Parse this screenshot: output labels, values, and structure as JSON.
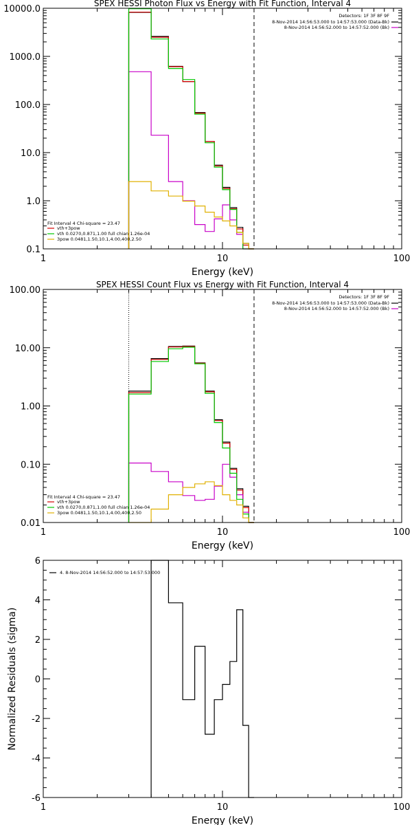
{
  "chart_data": [
    {
      "type": "line",
      "step": true,
      "title": "SPEX HESSI Photon Flux vs Energy with Fit Function, Interval 4",
      "xlabel": "Energy (keV)",
      "ylabel": "",
      "xscale": "log",
      "yscale": "log",
      "xlim": [
        1,
        100
      ],
      "ylim": [
        0.1,
        10000
      ],
      "xticks": [
        1,
        10,
        100
      ],
      "xtick_labels": [
        "1",
        "10",
        "100"
      ],
      "yticks": [
        0.1,
        1,
        10,
        100,
        1000,
        10000
      ],
      "ytick_labels": [
        "0.1",
        "1.0",
        "10.0",
        "100.0",
        "1000.0",
        "10000.0"
      ],
      "vlines": [
        {
          "x": 3.0,
          "style": "dotted",
          "color": "#e08a00"
        },
        {
          "x": 15.0,
          "style": "dashed",
          "color": "#000000"
        }
      ],
      "energy_edges": [
        3,
        4,
        5,
        6,
        7,
        8,
        9,
        10,
        11,
        12,
        13,
        14,
        15
      ],
      "series": [
        {
          "color": "#000000",
          "values": [
            8200,
            2600,
            620,
            300,
            68,
            17,
            5.5,
            1.9,
            0.72,
            0.28,
            0.13,
            0.1
          ]
        },
        {
          "color": "#d40000",
          "values": [
            8300,
            2500,
            610,
            300,
            66,
            17,
            5.3,
            1.8,
            0.68,
            0.26,
            0.12,
            0.1
          ]
        },
        {
          "color": "#c800c8",
          "values": [
            480,
            23,
            2.5,
            1.0,
            0.32,
            0.23,
            0.42,
            0.82,
            0.4,
            0.2,
            0.1,
            0.1
          ]
        },
        {
          "color": "#00c800",
          "values": [
            9800,
            2300,
            560,
            330,
            63,
            16,
            5.0,
            1.7,
            0.66,
            0.22,
            0.1,
            0.1
          ]
        },
        {
          "color": "#e0b000",
          "values": [
            2.5,
            1.6,
            1.25,
            0.98,
            0.78,
            0.58,
            0.46,
            0.38,
            0.3,
            0.22,
            0.13,
            0.1
          ]
        }
      ],
      "legend_right": {
        "header": "Detectors: 1F 3F 8F 9F",
        "items": [
          {
            "text": "8-Nov-2014 14:56:53.000 to 14:57:53.000 (Data-Bk)",
            "color": "#000000"
          },
          {
            "text": "8-Nov-2014 14:56:52.000 to 14:57:52.000 (Bk)",
            "color": "#c800c8"
          }
        ]
      },
      "legend_left": {
        "header": "Fit Interval  4   Chi-square = 23.47",
        "items": [
          {
            "text": "vth+3pow",
            "color": "#d40000"
          },
          {
            "text": "vth 0.0270,0.871,1.00  full chian 1.26e-04",
            "color": "#00c800"
          },
          {
            "text": "3pow 0.0481,1.50,10.1,4.00,400,2.50",
            "color": "#e0b000"
          }
        ]
      }
    },
    {
      "type": "line",
      "step": true,
      "title": "SPEX HESSI Count Flux vs Energy with Fit Function, Interval 4",
      "xlabel": "Energy (keV)",
      "ylabel": "",
      "xscale": "log",
      "yscale": "log",
      "xlim": [
        1,
        100
      ],
      "ylim": [
        0.01,
        100
      ],
      "xticks": [
        1,
        10,
        100
      ],
      "xtick_labels": [
        "1",
        "10",
        "100"
      ],
      "yticks": [
        0.01,
        0.1,
        1,
        10,
        100
      ],
      "ytick_labels": [
        "0.01",
        "0.10",
        "1.00",
        "10.00",
        "100.00"
      ],
      "vlines": [
        {
          "x": 3.0,
          "style": "dotted",
          "color": "#000000"
        },
        {
          "x": 15.0,
          "style": "dashed",
          "color": "#000000"
        }
      ],
      "energy_edges": [
        3,
        4,
        5,
        6,
        7,
        8,
        9,
        10,
        11,
        12,
        13,
        14,
        15
      ],
      "series": [
        {
          "color": "#000000",
          "values": [
            1.8,
            6.5,
            10.5,
            10.7,
            5.5,
            1.8,
            0.58,
            0.24,
            0.085,
            0.038,
            0.019,
            0.01
          ]
        },
        {
          "color": "#d40000",
          "values": [
            1.7,
            6.3,
            10.3,
            10.5,
            5.4,
            1.75,
            0.56,
            0.23,
            0.082,
            0.036,
            0.018,
            0.01
          ]
        },
        {
          "color": "#c800c8",
          "values": [
            0.105,
            0.075,
            0.05,
            0.029,
            0.024,
            0.025,
            0.042,
            0.1,
            0.06,
            0.03,
            0.015,
            0.01
          ]
        },
        {
          "color": "#00c800",
          "values": [
            1.6,
            5.8,
            9.6,
            10.2,
            5.3,
            1.65,
            0.52,
            0.19,
            0.07,
            0.025,
            0.014,
            0.01
          ]
        },
        {
          "color": "#e0b000",
          "values": [
            0.01,
            0.017,
            0.03,
            0.04,
            0.046,
            0.05,
            0.043,
            0.03,
            0.024,
            0.02,
            0.012,
            0.01
          ]
        }
      ],
      "legend_right": {
        "header": "Detectors: 1F 3F 8F 9F",
        "items": [
          {
            "text": "8-Nov-2014 14:56:53.000 to 14:57:53.000 (Data-Bk)",
            "color": "#000000"
          },
          {
            "text": "8-Nov-2014 14:56:52.000 to 14:57:52.000 (Bk)",
            "color": "#c800c8"
          }
        ]
      },
      "legend_left": {
        "header": "Fit Interval  4   Chi-square = 23.47",
        "items": [
          {
            "text": "vth+3pow",
            "color": "#d40000"
          },
          {
            "text": "vth 0.0270,0.871,1.00  full chian 1.26e-04",
            "color": "#00c800"
          },
          {
            "text": "3pow 0.0481,1.50,10.1,4.00,400,2.50",
            "color": "#e0b000"
          }
        ]
      }
    },
    {
      "type": "line",
      "step": true,
      "title": "",
      "xlabel": "Energy (keV)",
      "ylabel": "Normalized Residuals (sigma)",
      "xscale": "log",
      "yscale": "linear",
      "xlim": [
        1,
        100
      ],
      "ylim": [
        -6,
        6
      ],
      "xticks": [
        1,
        10,
        100
      ],
      "xtick_labels": [
        "1",
        "10",
        "100"
      ],
      "yticks": [
        -6,
        -4,
        -2,
        0,
        2,
        4,
        6
      ],
      "ytick_labels": [
        "-6",
        "-4",
        "-2",
        "0",
        "2",
        "4",
        "6"
      ],
      "energy_edges": [
        4,
        5,
        6,
        7,
        8,
        9,
        10,
        11,
        12,
        13,
        14,
        15
      ],
      "series": [
        {
          "color": "#000000",
          "values": [
            6.0,
            3.85,
            -1.05,
            1.65,
            -2.8,
            -1.05,
            -0.28,
            0.88,
            3.5,
            -2.35,
            -6.0
          ]
        }
      ],
      "legend_left": {
        "header": "",
        "items": [
          {
            "text": "4.  8-Nov-2014 14:56:52.000 to 14:57:53.000",
            "color": "#000000"
          }
        ]
      }
    }
  ]
}
